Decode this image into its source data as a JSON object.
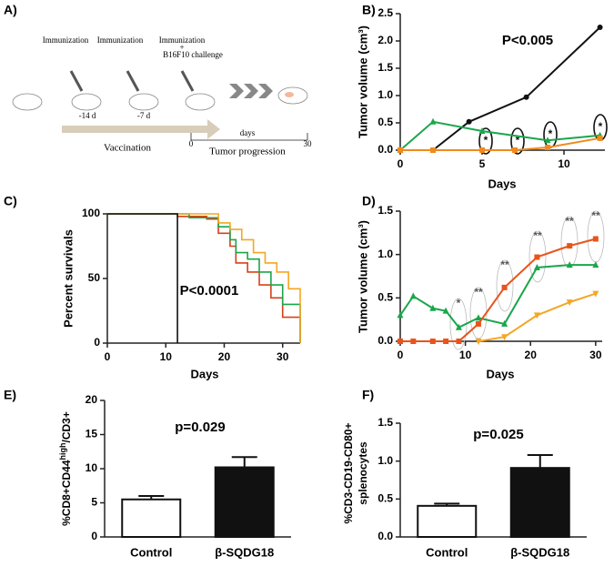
{
  "panel_a": {
    "panel_label": "A)",
    "step1": "Immunization",
    "step2": "Immunization",
    "step3": "Immunization",
    "plus": "+",
    "challenge": "B16F10 challenge",
    "day1": "-14 d",
    "day2": "-7 d",
    "vaccination": "Vaccination",
    "days": "days",
    "start": "0",
    "end": "30",
    "progression": "Tumor progression"
  },
  "chart_data": [
    {
      "type": "line",
      "panel_label": "B)",
      "xlabel": "Days",
      "ylabel": "Tumor volume (cm³)",
      "xlim": [
        0,
        12.5
      ],
      "xticks": [
        0,
        5,
        10
      ],
      "ylim": [
        0,
        2.5
      ],
      "yticks": [
        {
          "value": 0,
          "label": "0.0"
        },
        {
          "value": 0.5,
          "label": "0.5"
        },
        {
          "value": 1,
          "label": "1.0"
        },
        {
          "value": 1.5,
          "label": "1.5"
        },
        {
          "value": 2,
          "label": "2.0"
        },
        {
          "value": 2.5,
          "label": "2.5"
        }
      ],
      "annotations": [
        "P<0.005",
        "*",
        "*",
        "*",
        "*"
      ],
      "series": [
        {
          "color": "#111111",
          "marker": "circle",
          "x": [
            2,
            4.2,
            7.7,
            12.2
          ],
          "values": [
            0,
            0.52,
            0.97,
            2.25
          ]
        },
        {
          "color": "#1aa64b",
          "marker": "triangle",
          "x": [
            0,
            2,
            5,
            9,
            12.2
          ],
          "values": [
            0,
            0.52,
            0.35,
            0.18,
            0.27
          ]
        },
        {
          "color": "#f08a1c",
          "marker": "square",
          "x": [
            0,
            2,
            5,
            7,
            9,
            12.2
          ],
          "values": [
            0,
            0,
            0,
            0,
            0.05,
            0.22
          ]
        }
      ]
    },
    {
      "type": "step",
      "panel_label": "C)",
      "xlabel": "Days",
      "ylabel": "Percent survivals",
      "xlim": [
        0,
        33
      ],
      "xticks": [
        0,
        10,
        20,
        30
      ],
      "ylim": [
        0,
        100
      ],
      "yticks": [
        0,
        50,
        100
      ],
      "annotations": [
        "P<0.0001"
      ],
      "series": [
        {
          "color": "#d8401a",
          "x": [
            0,
            12,
            17,
            19,
            21,
            22,
            24,
            26,
            28,
            30,
            33
          ],
          "values": [
            100,
            98,
            96,
            85,
            75,
            62,
            55,
            45,
            35,
            20,
            0
          ]
        },
        {
          "color": "#1aa64b",
          "x": [
            0,
            14,
            19,
            21,
            22,
            24,
            26,
            28,
            30,
            33
          ],
          "values": [
            100,
            97,
            90,
            80,
            70,
            65,
            55,
            45,
            30,
            0
          ]
        },
        {
          "color": "#f5a623",
          "x": [
            0,
            17,
            19,
            21,
            23,
            25,
            27,
            29,
            31,
            33
          ],
          "values": [
            100,
            100,
            93,
            88,
            80,
            70,
            62,
            55,
            42,
            0
          ]
        },
        {
          "color": "#111111",
          "x": [
            0,
            12
          ],
          "values": [
            100,
            0
          ]
        }
      ]
    },
    {
      "type": "line",
      "panel_label": "D)",
      "xlabel": "Days",
      "ylabel": "Tumor volume (cm³)",
      "xlim": [
        0,
        31
      ],
      "xticks": [
        0,
        10,
        20,
        30
      ],
      "ylim": [
        0,
        1.5
      ],
      "yticks": [
        {
          "value": 0,
          "label": "0.0"
        },
        {
          "value": 0.5,
          "label": "0.5"
        },
        {
          "value": 1,
          "label": "1.0"
        },
        {
          "value": 1.5,
          "label": "1.5"
        }
      ],
      "annotations": [
        "*",
        "**",
        "**",
        "**",
        "**",
        "**"
      ],
      "series": [
        {
          "color": "#1aa64b",
          "marker": "triangle",
          "x": [
            0,
            2,
            5,
            7,
            9,
            12,
            16,
            21,
            26,
            30
          ],
          "values": [
            0.3,
            0.52,
            0.38,
            0.35,
            0.16,
            0.27,
            0.2,
            0.85,
            0.88,
            0.88
          ]
        },
        {
          "color": "#e8541a",
          "marker": "square",
          "x": [
            0,
            2,
            5,
            7,
            9,
            12,
            16,
            21,
            26,
            30
          ],
          "values": [
            0,
            0,
            0,
            0,
            0,
            0.2,
            0.62,
            0.97,
            1.1,
            1.18
          ]
        },
        {
          "color": "#f5a623",
          "marker": "triangle-down",
          "x": [
            12,
            16,
            21,
            26,
            30
          ],
          "values": [
            0,
            0.05,
            0.3,
            0.45,
            0.55
          ]
        }
      ]
    },
    {
      "type": "bar",
      "panel_label": "E)",
      "ylabel": {
        "main": "%CD8+CD44",
        "sup": "high",
        "rest": "/CD3+"
      },
      "categories": [
        "Control",
        "β-SQDG18"
      ],
      "values": [
        5.5,
        10.2
      ],
      "errors": [
        0.5,
        1.5
      ],
      "colors": [
        "#ffffff",
        "#111111"
      ],
      "ylim": [
        0,
        20
      ],
      "yticks": [
        0,
        5,
        10,
        15,
        20
      ],
      "annotations": [
        "p=0.029"
      ]
    },
    {
      "type": "bar",
      "panel_label": "F)",
      "ylabel": [
        "%CD3-CD19-CD80+",
        "splenocytes"
      ],
      "categories": [
        "Control",
        "β-SQDG18"
      ],
      "values": [
        0.41,
        0.91
      ],
      "errors": [
        0.03,
        0.17
      ],
      "colors": [
        "#ffffff",
        "#111111"
      ],
      "ylim": [
        0,
        1.5
      ],
      "yticks": [
        {
          "value": 0,
          "label": "0.0"
        },
        {
          "value": 0.5,
          "label": "0.5"
        },
        {
          "value": 1,
          "label": "1.0"
        },
        {
          "value": 1.5,
          "label": "1.5"
        }
      ],
      "annotations": [
        "p=0.025"
      ]
    }
  ]
}
